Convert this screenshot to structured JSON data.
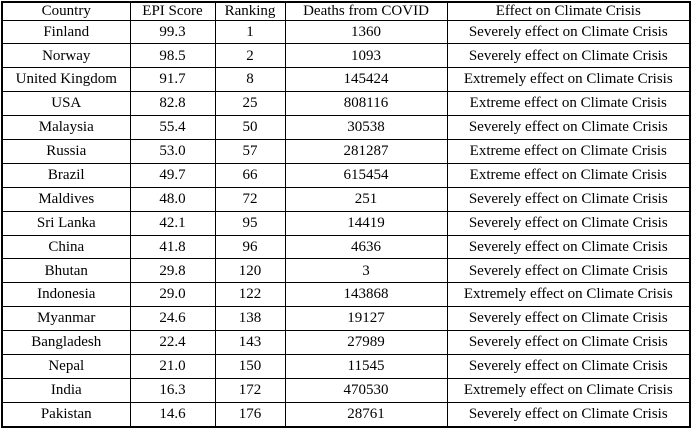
{
  "colors": {
    "background": "#ffffff",
    "border": "#000000",
    "text": "#000000"
  },
  "table": {
    "columns": [
      {
        "key": "country",
        "label": "Country"
      },
      {
        "key": "epi_score",
        "label": "EPI Score"
      },
      {
        "key": "ranking",
        "label": "Ranking"
      },
      {
        "key": "deaths_from_covid",
        "label": "Deaths from COVID"
      },
      {
        "key": "effect_on_climate_crisis",
        "label": "Effect on Climate Crisis"
      }
    ],
    "rows": [
      {
        "country": "Finland",
        "epi_score": "99.3",
        "ranking": "1",
        "deaths_from_covid": "1360",
        "effect_on_climate_crisis": "Severely effect on Climate Crisis"
      },
      {
        "country": "Norway",
        "epi_score": "98.5",
        "ranking": "2",
        "deaths_from_covid": "1093",
        "effect_on_climate_crisis": "Severely effect on Climate Crisis"
      },
      {
        "country": "United Kingdom",
        "epi_score": "91.7",
        "ranking": "8",
        "deaths_from_covid": "145424",
        "effect_on_climate_crisis": "Extremely effect on Climate Crisis"
      },
      {
        "country": "USA",
        "epi_score": "82.8",
        "ranking": "25",
        "deaths_from_covid": "808116",
        "effect_on_climate_crisis": "Extreme effect on Climate Crisis"
      },
      {
        "country": "Malaysia",
        "epi_score": "55.4",
        "ranking": "50",
        "deaths_from_covid": "30538",
        "effect_on_climate_crisis": "Severely effect on Climate Crisis"
      },
      {
        "country": "Russia",
        "epi_score": "53.0",
        "ranking": "57",
        "deaths_from_covid": "281287",
        "effect_on_climate_crisis": "Extreme effect on Climate Crisis"
      },
      {
        "country": "Brazil",
        "epi_score": "49.7",
        "ranking": "66",
        "deaths_from_covid": "615454",
        "effect_on_climate_crisis": "Extreme effect on Climate Crisis"
      },
      {
        "country": "Maldives",
        "epi_score": "48.0",
        "ranking": "72",
        "deaths_from_covid": "251",
        "effect_on_climate_crisis": "Severely effect on Climate Crisis"
      },
      {
        "country": "Sri Lanka",
        "epi_score": "42.1",
        "ranking": "95",
        "deaths_from_covid": "14419",
        "effect_on_climate_crisis": "Severely effect on Climate Crisis"
      },
      {
        "country": "China",
        "epi_score": "41.8",
        "ranking": "96",
        "deaths_from_covid": "4636",
        "effect_on_climate_crisis": "Severely effect on Climate Crisis"
      },
      {
        "country": "Bhutan",
        "epi_score": "29.8",
        "ranking": "120",
        "deaths_from_covid": "3",
        "effect_on_climate_crisis": "Severely effect on Climate Crisis"
      },
      {
        "country": "Indonesia",
        "epi_score": "29.0",
        "ranking": "122",
        "deaths_from_covid": "143868",
        "effect_on_climate_crisis": "Extremely effect on Climate Crisis"
      },
      {
        "country": "Myanmar",
        "epi_score": "24.6",
        "ranking": "138",
        "deaths_from_covid": "19127",
        "effect_on_climate_crisis": "Severely effect on Climate Crisis"
      },
      {
        "country": "Bangladesh",
        "epi_score": "22.4",
        "ranking": "143",
        "deaths_from_covid": "27989",
        "effect_on_climate_crisis": "Severely effect on Climate Crisis"
      },
      {
        "country": "Nepal",
        "epi_score": "21.0",
        "ranking": "150",
        "deaths_from_covid": "11545",
        "effect_on_climate_crisis": "Severely effect on Climate Crisis"
      },
      {
        "country": "India",
        "epi_score": "16.3",
        "ranking": "172",
        "deaths_from_covid": "470530",
        "effect_on_climate_crisis": "Extremely effect on Climate Crisis"
      },
      {
        "country": "Pakistan",
        "epi_score": "14.6",
        "ranking": "176",
        "deaths_from_covid": "28761",
        "effect_on_climate_crisis": "Severely effect on Climate Crisis"
      }
    ]
  },
  "chart_data": {
    "type": "table",
    "columns": [
      "Country",
      "EPI Score",
      "Ranking",
      "Deaths from COVID",
      "Effect on Climate Crisis"
    ],
    "rows": [
      [
        "Finland",
        99.3,
        1,
        1360,
        "Severely effect on Climate Crisis"
      ],
      [
        "Norway",
        98.5,
        2,
        1093,
        "Severely effect on Climate Crisis"
      ],
      [
        "United Kingdom",
        91.7,
        8,
        145424,
        "Extremely effect on Climate Crisis"
      ],
      [
        "USA",
        82.8,
        25,
        808116,
        "Extreme effect on Climate Crisis"
      ],
      [
        "Malaysia",
        55.4,
        50,
        30538,
        "Severely effect on Climate Crisis"
      ],
      [
        "Russia",
        53.0,
        57,
        281287,
        "Extreme effect on Climate Crisis"
      ],
      [
        "Brazil",
        49.7,
        66,
        615454,
        "Extreme effect on Climate Crisis"
      ],
      [
        "Maldives",
        48.0,
        72,
        251,
        "Severely effect on Climate Crisis"
      ],
      [
        "Sri Lanka",
        42.1,
        95,
        14419,
        "Severely effect on Climate Crisis"
      ],
      [
        "China",
        41.8,
        96,
        4636,
        "Severely effect on Climate Crisis"
      ],
      [
        "Bhutan",
        29.8,
        120,
        3,
        "Severely effect on Climate Crisis"
      ],
      [
        "Indonesia",
        29.0,
        122,
        143868,
        "Extremely effect on Climate Crisis"
      ],
      [
        "Myanmar",
        24.6,
        138,
        19127,
        "Severely effect on Climate Crisis"
      ],
      [
        "Bangladesh",
        22.4,
        143,
        27989,
        "Severely effect on Climate Crisis"
      ],
      [
        "Nepal",
        21.0,
        150,
        11545,
        "Severely effect on Climate Crisis"
      ],
      [
        "India",
        16.3,
        172,
        470530,
        "Extremely effect on Climate Crisis"
      ],
      [
        "Pakistan",
        14.6,
        176,
        28761,
        "Severely effect on Climate Crisis"
      ]
    ]
  }
}
